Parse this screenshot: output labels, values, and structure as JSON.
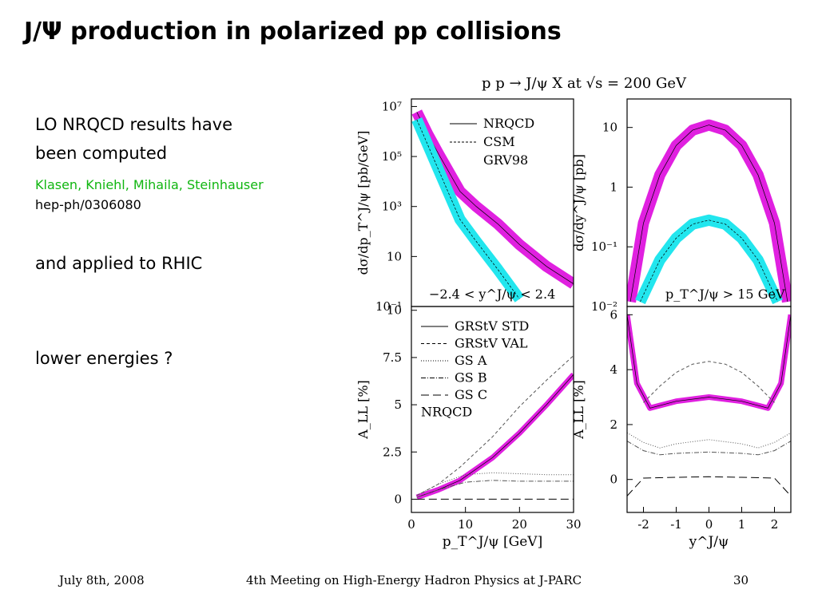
{
  "slide": {
    "title": "J/Ψ production in polarized pp collisions",
    "lines": [
      "LO NRQCD results have",
      "been computed"
    ],
    "authors": "Klasen, Kniehl, Mihaila, Steinhauser",
    "reference": "hep-ph/0306080",
    "applied": "and applied to RHIC",
    "question": "lower energies ?",
    "footer": {
      "date": "July 8th, 2008",
      "meeting": "4th Meeting on High-Energy Hadron Physics at J-PARC",
      "page": "30"
    }
  },
  "colors": {
    "nrqcd_band": "#e020e0",
    "csm_band": "#22e6ee",
    "axes": "#000000"
  },
  "chart_data": [
    {
      "type": "line",
      "panel": "top-left",
      "title": "p p → J/ψ X at √s = 200 GeV",
      "xlabel": "",
      "ylabel": "dσ/dp_T^J/ψ [pb/GeV]",
      "yscale": "log",
      "ylim": [
        0.1,
        20000000
      ],
      "yticks": [
        "10⁻¹",
        "10",
        "10³",
        "10⁵",
        "10⁷"
      ],
      "xlim": [
        0,
        30
      ],
      "annotation": "−2.4 < y^J/ψ < 2.4",
      "legend": [
        "NRQCD",
        "CSM",
        "GRV98"
      ],
      "legend_position": "top-right",
      "series": [
        {
          "name": "NRQCD",
          "style": "solid band",
          "x": [
            1,
            3,
            5,
            9,
            12,
            16,
            20,
            25,
            30
          ],
          "y": [
            6000000,
            800000,
            130000,
            4000,
            1000,
            200,
            30,
            4,
            0.8
          ]
        },
        {
          "name": "CSM",
          "style": "dashed band",
          "x": [
            1,
            3,
            5,
            9,
            12,
            16,
            20
          ],
          "y": [
            3000000,
            300000,
            30000,
            300,
            40,
            3,
            0.2
          ]
        }
      ]
    },
    {
      "type": "line",
      "panel": "top-right",
      "xlabel": "",
      "ylabel": "dσ/dy^J/ψ [pb]",
      "yscale": "log",
      "ylim": [
        0.01,
        30
      ],
      "yticks": [
        "10⁻²",
        "10⁻¹",
        "1",
        "10"
      ],
      "xlim": [
        -2.5,
        2.5
      ],
      "annotation": "p_T^J/ψ > 15 GeV",
      "series": [
        {
          "name": "NRQCD",
          "style": "solid band",
          "x": [
            -2.4,
            -2,
            -1.5,
            -1,
            -0.5,
            0,
            0.5,
            1,
            1.5,
            2,
            2.4
          ],
          "y": [
            0.012,
            0.25,
            1.6,
            5,
            9,
            11,
            9,
            5,
            1.6,
            0.25,
            0.012
          ]
        },
        {
          "name": "CSM",
          "style": "dashed band",
          "x": [
            -2.1,
            -1.5,
            -1,
            -0.5,
            0,
            0.5,
            1,
            1.5,
            2.1
          ],
          "y": [
            0.012,
            0.06,
            0.14,
            0.24,
            0.28,
            0.24,
            0.14,
            0.06,
            0.012
          ]
        }
      ]
    },
    {
      "type": "line",
      "panel": "bottom-left",
      "xlabel": "p_T^J/ψ [GeV]",
      "ylabel": "A_LL [%]",
      "xlim": [
        0,
        30
      ],
      "ylim": [
        -0.7,
        10.2
      ],
      "xticks": [
        "0",
        "10",
        "20",
        "30"
      ],
      "yticks": [
        "0",
        "2.5",
        "5",
        "7.5",
        "10"
      ],
      "legend": [
        "GRStV STD",
        "GRStV VAL",
        "GS A",
        "GS B",
        "GS C",
        "NRQCD"
      ],
      "legend_position": "top-left",
      "series": [
        {
          "name": "GRStV STD",
          "style": "magenta band",
          "x": [
            1,
            5,
            9,
            15,
            20,
            25,
            30
          ],
          "y": [
            0.1,
            0.5,
            1.0,
            2.2,
            3.5,
            5.0,
            6.6
          ]
        },
        {
          "name": "GRStV VAL",
          "style": "dashed",
          "x": [
            1,
            5,
            9,
            15,
            20,
            25,
            30
          ],
          "y": [
            0.2,
            0.8,
            1.7,
            3.3,
            4.9,
            6.3,
            7.6
          ]
        },
        {
          "name": "GS A",
          "style": "dotted",
          "x": [
            1,
            5,
            10,
            15,
            20,
            25,
            30
          ],
          "y": [
            0.2,
            0.8,
            1.3,
            1.4,
            1.35,
            1.3,
            1.3
          ]
        },
        {
          "name": "GS B",
          "style": "dash-dot",
          "x": [
            1,
            5,
            10,
            15,
            20,
            25,
            30
          ],
          "y": [
            0.1,
            0.5,
            0.9,
            1.0,
            0.95,
            0.95,
            0.95
          ]
        },
        {
          "name": "GS C",
          "style": "long-dash",
          "x": [
            1,
            10,
            20,
            30
          ],
          "y": [
            0.0,
            0.0,
            0.0,
            0.0
          ]
        }
      ]
    },
    {
      "type": "line",
      "panel": "bottom-right",
      "xlabel": "y^J/ψ",
      "ylabel": "A_LL [%]",
      "xlim": [
        -2.5,
        2.5
      ],
      "ylim": [
        -1.2,
        6.3
      ],
      "xticks": [
        "-2",
        "-1",
        "0",
        "1",
        "2"
      ],
      "yticks": [
        "0",
        "2",
        "4",
        "6"
      ],
      "series": [
        {
          "name": "GRStV STD",
          "style": "magenta band",
          "x": [
            -2.5,
            -2.2,
            -1.8,
            -1,
            0,
            1,
            1.8,
            2.2,
            2.5
          ],
          "y": [
            6.0,
            3.5,
            2.6,
            2.85,
            3.0,
            2.85,
            2.6,
            3.5,
            6.0
          ]
        },
        {
          "name": "GRStV VAL",
          "style": "dashed",
          "x": [
            -2,
            -1.5,
            -1,
            -0.5,
            0,
            0.5,
            1,
            1.5,
            2
          ],
          "y": [
            2.8,
            3.4,
            3.9,
            4.2,
            4.3,
            4.2,
            3.9,
            3.4,
            2.8
          ]
        },
        {
          "name": "GS A",
          "style": "dotted",
          "x": [
            -2.5,
            -2,
            -1.5,
            -1,
            0,
            1,
            1.5,
            2,
            2.5
          ],
          "y": [
            1.7,
            1.35,
            1.15,
            1.3,
            1.45,
            1.3,
            1.15,
            1.35,
            1.7
          ]
        },
        {
          "name": "GS B",
          "style": "dash-dot",
          "x": [
            -2.5,
            -2,
            -1.5,
            -1,
            0,
            1,
            1.5,
            2,
            2.5
          ],
          "y": [
            1.4,
            1.05,
            0.9,
            0.95,
            1.0,
            0.95,
            0.9,
            1.05,
            1.4
          ]
        },
        {
          "name": "GS C",
          "style": "long-dash",
          "x": [
            -2.5,
            -2,
            -1,
            0,
            1,
            2,
            2.5
          ],
          "y": [
            -0.6,
            0.05,
            0.08,
            0.1,
            0.08,
            0.05,
            -0.6
          ]
        }
      ]
    }
  ]
}
